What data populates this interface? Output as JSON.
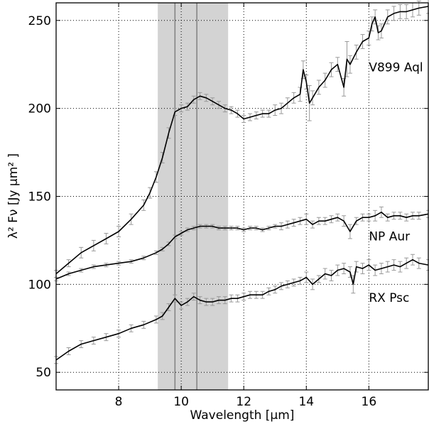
{
  "chart_data": {
    "type": "line",
    "xlabel": "Wavelength [μm]",
    "ylabel": "λ² Fν  [Jy μm² ]",
    "xlim": [
      6.0,
      17.9
    ],
    "ylim": [
      40,
      260
    ],
    "xticks": [
      8,
      10,
      12,
      14,
      16
    ],
    "yticks": [
      50,
      100,
      150,
      200,
      250
    ],
    "grid": true,
    "grid_style": "dotted",
    "shaded_band": {
      "x": [
        9.25,
        11.5
      ],
      "color": "#d3d3d3"
    },
    "vertical_lines": [
      9.8,
      10.5
    ],
    "colors": {
      "line": "#000000",
      "error_bars": "#999999",
      "band": "#d3d3d3",
      "vlines": "#808080"
    },
    "series": [
      {
        "name": "V899 Aql",
        "x": [
          6.0,
          6.4,
          6.8,
          7.2,
          7.6,
          8.0,
          8.4,
          8.8,
          9.0,
          9.2,
          9.4,
          9.6,
          9.8,
          10.0,
          10.2,
          10.4,
          10.6,
          10.8,
          11.0,
          11.2,
          11.4,
          11.6,
          11.8,
          12.0,
          12.2,
          12.4,
          12.6,
          12.8,
          13.0,
          13.2,
          13.4,
          13.6,
          13.8,
          13.9,
          14.0,
          14.1,
          14.2,
          14.4,
          14.6,
          14.8,
          15.0,
          15.2,
          15.3,
          15.4,
          15.6,
          15.8,
          16.0,
          16.1,
          16.2,
          16.3,
          16.4,
          16.6,
          16.8,
          17.0,
          17.2,
          17.4,
          17.6,
          17.9
        ],
        "y": [
          106,
          112,
          118,
          122,
          126,
          130,
          137,
          145,
          152,
          161,
          172,
          186,
          198,
          200,
          201,
          205,
          207,
          206,
          204,
          202,
          200,
          199,
          197,
          194,
          195,
          196,
          197,
          197,
          199,
          200,
          203,
          206,
          208,
          222,
          215,
          203,
          206,
          212,
          216,
          222,
          225,
          212,
          228,
          225,
          232,
          238,
          240,
          248,
          252,
          243,
          244,
          252,
          254,
          255,
          255,
          256,
          257,
          258
        ],
        "errors": [
          2,
          2,
          3,
          3,
          3,
          3,
          3,
          3,
          3,
          3,
          3,
          3,
          2,
          2,
          2,
          2,
          2,
          2,
          2,
          2,
          2,
          2,
          2,
          2,
          2,
          2,
          2,
          2,
          3,
          3,
          3,
          3,
          4,
          5,
          4,
          10,
          4,
          4,
          4,
          4,
          4,
          5,
          10,
          5,
          4,
          4,
          4,
          4,
          4,
          4,
          4,
          4,
          4,
          4,
          4,
          4,
          4,
          4
        ]
      },
      {
        "name": "NP Aur",
        "x": [
          6.0,
          6.4,
          6.8,
          7.2,
          7.6,
          8.0,
          8.4,
          8.8,
          9.2,
          9.4,
          9.6,
          9.8,
          10.0,
          10.2,
          10.4,
          10.6,
          10.8,
          11.0,
          11.2,
          11.4,
          11.6,
          11.8,
          12.0,
          12.2,
          12.4,
          12.6,
          12.8,
          13.0,
          13.2,
          13.4,
          13.6,
          13.8,
          14.0,
          14.2,
          14.4,
          14.6,
          14.8,
          15.0,
          15.2,
          15.4,
          15.6,
          15.8,
          16.0,
          16.2,
          16.4,
          16.6,
          16.8,
          17.0,
          17.2,
          17.4,
          17.6,
          17.9
        ],
        "y": [
          103,
          106,
          108,
          110,
          111,
          112,
          113,
          115,
          118,
          120,
          123,
          127,
          129,
          131,
          132,
          133,
          133,
          133,
          132,
          132,
          132,
          132,
          131,
          132,
          132,
          131,
          132,
          133,
          133,
          134,
          135,
          136,
          137,
          134,
          136,
          136,
          137,
          138,
          136,
          130,
          136,
          138,
          138,
          139,
          141,
          138,
          139,
          139,
          138,
          139,
          139,
          140
        ],
        "errors": [
          1,
          1,
          1,
          1,
          1,
          1,
          1,
          1,
          1,
          1,
          1,
          1,
          1,
          1,
          1,
          1,
          1,
          1,
          1,
          1,
          1,
          1,
          1,
          1,
          1,
          1,
          1,
          1,
          2,
          2,
          2,
          2,
          3,
          2,
          2,
          2,
          2,
          2,
          3,
          4,
          2,
          2,
          2,
          3,
          3,
          2,
          2,
          2,
          2,
          2,
          2,
          2
        ]
      },
      {
        "name": "RX Psc",
        "x": [
          6.0,
          6.4,
          6.8,
          7.2,
          7.6,
          8.0,
          8.4,
          8.8,
          9.2,
          9.4,
          9.6,
          9.8,
          10.0,
          10.2,
          10.4,
          10.6,
          10.8,
          11.0,
          11.2,
          11.4,
          11.6,
          11.8,
          12.0,
          12.2,
          12.4,
          12.6,
          12.8,
          13.0,
          13.2,
          13.4,
          13.6,
          13.8,
          14.0,
          14.2,
          14.4,
          14.6,
          14.8,
          15.0,
          15.2,
          15.4,
          15.5,
          15.6,
          15.8,
          16.0,
          16.2,
          16.4,
          16.6,
          16.8,
          17.0,
          17.2,
          17.4,
          17.6,
          17.9
        ],
        "y": [
          57,
          62,
          66,
          68,
          70,
          72,
          75,
          77,
          80,
          82,
          87,
          92,
          88,
          90,
          93,
          91,
          90,
          90,
          91,
          91,
          92,
          92,
          93,
          94,
          94,
          94,
          96,
          97,
          99,
          100,
          101,
          102,
          104,
          100,
          103,
          106,
          105,
          108,
          109,
          107,
          100,
          110,
          109,
          111,
          108,
          109,
          110,
          111,
          110,
          112,
          114,
          112,
          111
        ],
        "errors": [
          2,
          2,
          2,
          2,
          2,
          2,
          2,
          2,
          2,
          2,
          2,
          2,
          2,
          2,
          2,
          2,
          2,
          2,
          2,
          2,
          2,
          2,
          2,
          2,
          2,
          2,
          2,
          2,
          2,
          2,
          2,
          2,
          3,
          3,
          2,
          3,
          3,
          3,
          3,
          3,
          5,
          3,
          3,
          3,
          3,
          3,
          3,
          3,
          3,
          3,
          3,
          3,
          3
        ]
      }
    ]
  }
}
